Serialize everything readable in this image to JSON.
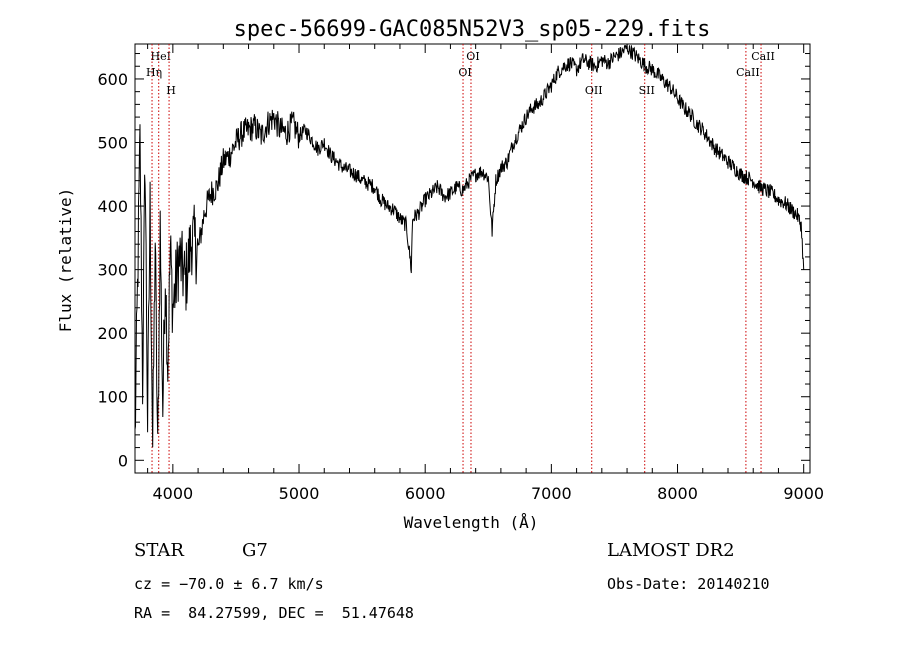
{
  "chart_data": {
    "type": "line",
    "title": "spec-56699-GAC085N52V3_sp05-229.fits",
    "xlabel": "Wavelength (Å)",
    "ylabel": "Flux (relative)",
    "xlim": [
      3700,
      9050
    ],
    "ylim": [
      -20,
      655
    ],
    "xticks": [
      4000,
      5000,
      6000,
      7000,
      8000,
      9000
    ],
    "yticks": [
      0,
      100,
      200,
      300,
      400,
      500,
      600
    ],
    "grid": false,
    "series": [
      {
        "x": [
          3700,
          3740,
          3760,
          3780,
          3800,
          3820,
          3840,
          3860,
          3880,
          3900,
          3920,
          3940,
          3960,
          3980,
          4000,
          4050,
          4100,
          4150,
          4200,
          4250,
          4300,
          4350,
          4400,
          4450,
          4500,
          4550,
          4600,
          4650,
          4700,
          4750,
          4800,
          4850,
          4900,
          4950,
          5000,
          5050,
          5100,
          5150,
          5200,
          5250,
          5300,
          5350,
          5400,
          5450,
          5500,
          5550,
          5600,
          5650,
          5700,
          5750,
          5800,
          5850,
          5890,
          5900,
          5950,
          6000,
          6050,
          6100,
          6150,
          6200,
          6250,
          6300,
          6350,
          6400,
          6450,
          6500,
          6530,
          6560,
          6600,
          6650,
          6700,
          6750,
          6800,
          6850,
          6900,
          6950,
          7000,
          7050,
          7100,
          7150,
          7200,
          7250,
          7300,
          7350,
          7400,
          7450,
          7500,
          7550,
          7600,
          7650,
          7700,
          7750,
          7800,
          7850,
          7900,
          7950,
          8000,
          8050,
          8100,
          8150,
          8200,
          8250,
          8300,
          8350,
          8400,
          8450,
          8500,
          8550,
          8600,
          8650,
          8700,
          8750,
          8800,
          8850,
          8900,
          8950,
          8980,
          9000
        ],
        "y": [
          30,
          500,
          120,
          480,
          60,
          400,
          20,
          350,
          0,
          370,
          80,
          300,
          150,
          330,
          240,
          320,
          280,
          350,
          330,
          390,
          420,
          430,
          470,
          480,
          500,
          515,
          520,
          525,
          510,
          530,
          540,
          520,
          515,
          530,
          510,
          520,
          505,
          490,
          500,
          480,
          470,
          460,
          455,
          450,
          440,
          435,
          430,
          410,
          400,
          395,
          380,
          370,
          300,
          380,
          390,
          410,
          420,
          430,
          415,
          420,
          430,
          425,
          440,
          450,
          455,
          445,
          360,
          440,
          460,
          470,
          500,
          520,
          540,
          555,
          560,
          575,
          590,
          610,
          620,
          625,
          615,
          630,
          625,
          620,
          630,
          625,
          635,
          640,
          650,
          640,
          630,
          620,
          615,
          605,
          595,
          585,
          570,
          555,
          545,
          530,
          520,
          505,
          490,
          480,
          470,
          460,
          450,
          445,
          440,
          430,
          425,
          420,
          410,
          405,
          395,
          385,
          370,
          300
        ]
      }
    ],
    "line_markers": [
      {
        "label": "HeI",
        "x": 3888
      },
      {
        "label": "Hη",
        "x": 3835
      },
      {
        "label": "H",
        "x": 3970
      },
      {
        "label": "OI",
        "x": 6363
      },
      {
        "label": "OI",
        "x": 6300
      },
      {
        "label": "OII",
        "x": 7320
      },
      {
        "label": "SII",
        "x": 7740
      },
      {
        "label": "CaII",
        "x": 8662
      },
      {
        "label": "CaII",
        "x": 8542
      }
    ],
    "marker_color": "#cc0000"
  },
  "info": {
    "object_class": "STAR",
    "subclass": "G7",
    "redshift": "cz = −70.0 ± 6.7 km/s",
    "coords": "RA =  84.27599, DEC =  51.47648",
    "survey": "LAMOST DR2",
    "obs_date": "Obs-Date: 20140210"
  }
}
